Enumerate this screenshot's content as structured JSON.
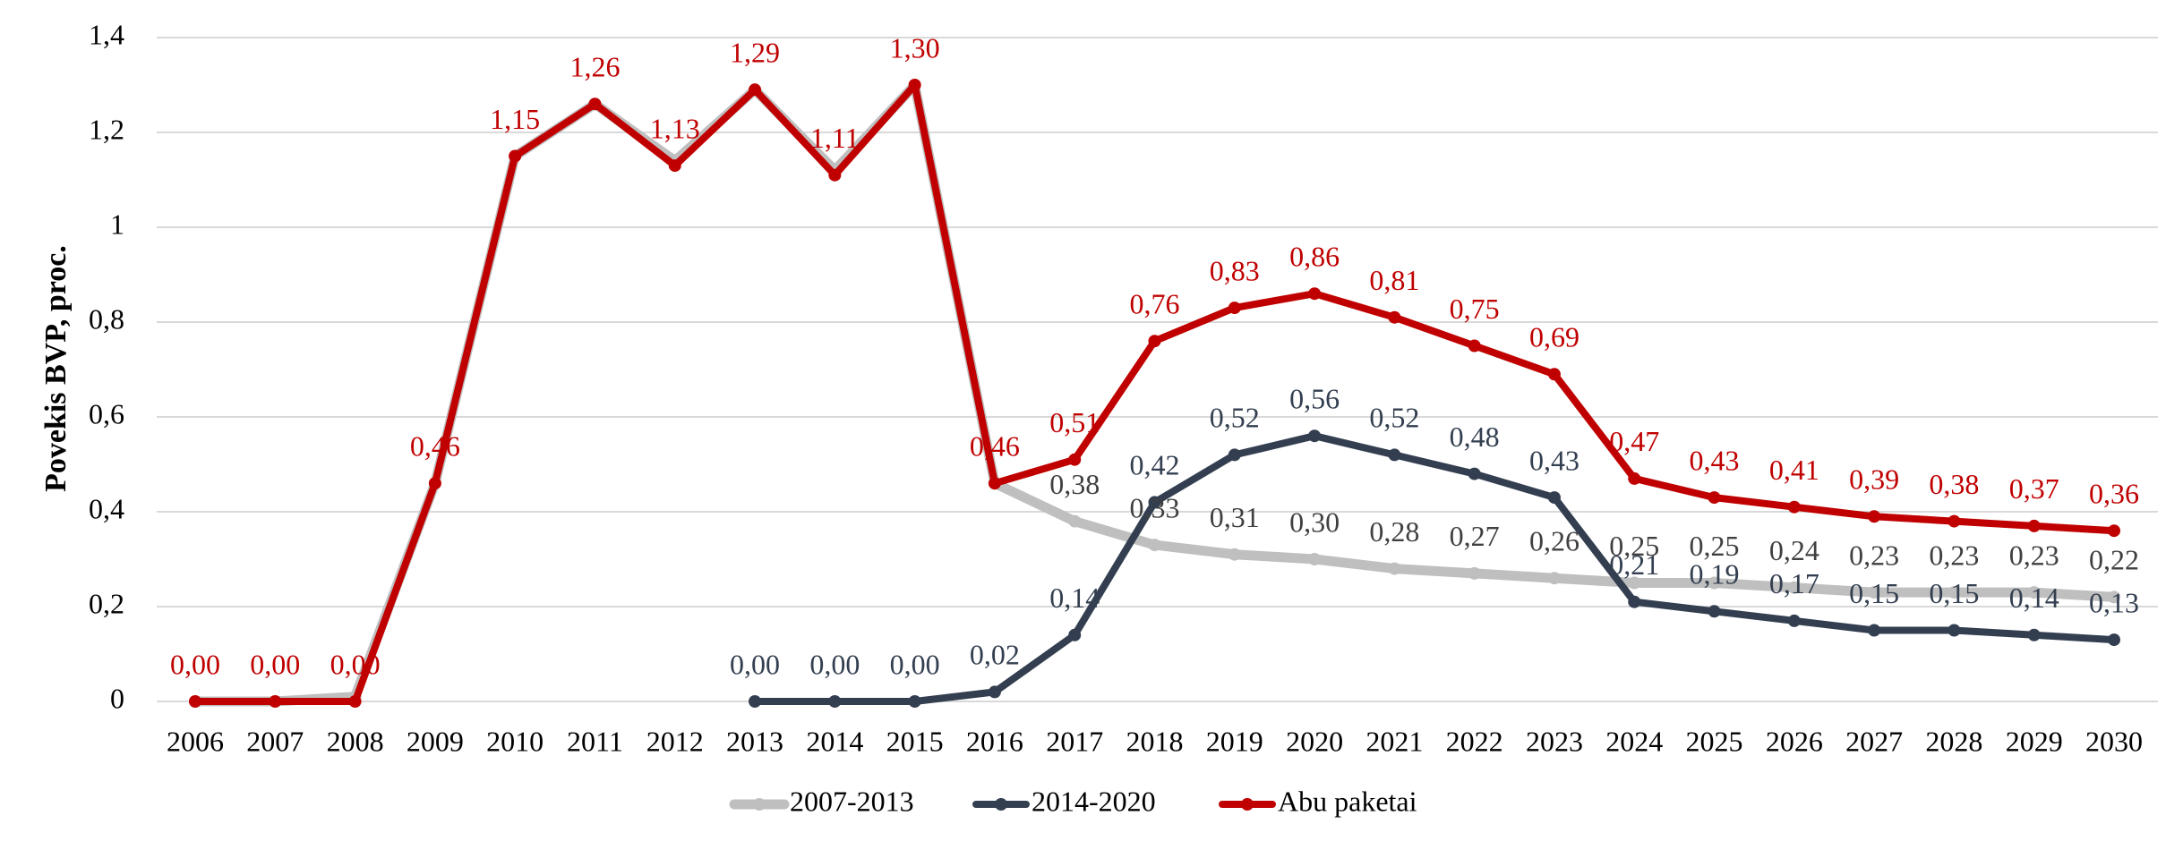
{
  "chart_data": {
    "type": "line",
    "y_axis_label": "Povekis BVP, proc.",
    "categories": [
      "2006",
      "2007",
      "2008",
      "2009",
      "2010",
      "2011",
      "2012",
      "2013",
      "2014",
      "2015",
      "2016",
      "2017",
      "2018",
      "2019",
      "2020",
      "2021",
      "2022",
      "2023",
      "2024",
      "2025",
      "2026",
      "2027",
      "2028",
      "2029",
      "2030"
    ],
    "ylim": [
      0,
      1.4
    ],
    "yticks": [
      0,
      {
        "value": 0.2,
        "label": "0,2"
      },
      {
        "value": 0.4,
        "label": "0,4"
      },
      {
        "value": 0.6,
        "label": "0,6"
      },
      {
        "value": 0.8,
        "label": "0,8"
      },
      1,
      {
        "value": 1.2,
        "label": "1,2"
      },
      {
        "value": 1.4,
        "label": "1,4"
      }
    ],
    "grid": true,
    "legend": "bottom",
    "series": [
      {
        "name": "2007-2013",
        "color": "#bfbfbf",
        "values": [
          0,
          0,
          0.01,
          0.46,
          1.15,
          1.26,
          1.14,
          1.29,
          1.12,
          1.3,
          0.46,
          0.38,
          0.33,
          0.31,
          0.3,
          0.28,
          0.27,
          0.26,
          0.25,
          0.25,
          0.24,
          0.23,
          0.23,
          0.23,
          0.22
        ],
        "value_labels": [
          null,
          null,
          null,
          null,
          null,
          null,
          null,
          null,
          null,
          null,
          null,
          "0,38",
          "0,33",
          "0,31",
          "0,30",
          "0,28",
          "0,27",
          "0,26",
          "0,25",
          "0,25",
          "0,24",
          "0,23",
          "0,23",
          "0,23",
          "0,22"
        ]
      },
      {
        "name": "2014-2020",
        "color": "#333f50",
        "values": [
          null,
          null,
          null,
          null,
          null,
          null,
          null,
          0,
          0,
          0,
          0.02,
          0.14,
          0.42,
          0.52,
          0.56,
          0.52,
          0.48,
          0.43,
          0.21,
          0.19,
          0.17,
          0.15,
          0.15,
          0.14,
          0.13
        ],
        "value_labels": [
          null,
          null,
          null,
          null,
          null,
          null,
          null,
          "0,00",
          "0,00",
          "0,00",
          "0,02",
          "0,14",
          "0,42",
          "0,52",
          "0,56",
          "0,52",
          "0,48",
          "0,43",
          "0,21",
          "0,19",
          "0,17",
          "0,15",
          "0,15",
          "0,14",
          "0,13"
        ]
      },
      {
        "name": "Abu paketai",
        "color": "#c00000",
        "values": [
          0,
          0,
          0,
          0.46,
          1.15,
          1.26,
          1.13,
          1.29,
          1.11,
          1.3,
          0.46,
          0.51,
          0.76,
          0.83,
          0.86,
          0.81,
          0.75,
          0.69,
          0.47,
          0.43,
          0.41,
          0.39,
          0.38,
          0.37,
          0.36
        ],
        "value_labels": [
          "0,00",
          "0,00",
          "0,00",
          "0,46",
          "1,15",
          "1,26",
          "1,13",
          "1,29",
          "1,11",
          "1,30",
          "0,46",
          "0,51",
          "0,76",
          "0,83",
          "0,86",
          "0,81",
          "0,75",
          "0,69",
          "0,47",
          "0,43",
          "0,41",
          "0,39",
          "0,38",
          "0,37",
          "0,36"
        ]
      }
    ]
  }
}
